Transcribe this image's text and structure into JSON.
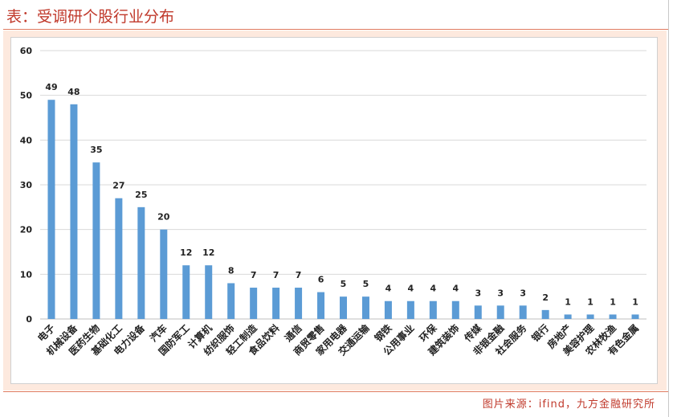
{
  "header": {
    "title": "表：受调研个股行业分布"
  },
  "footer": {
    "source": "图片来源：ifind，九方金融研究所"
  },
  "colors": {
    "bar": "#5b9bd5",
    "title": "#c0392b",
    "frame": "#fde9de"
  },
  "chart_data": {
    "type": "bar",
    "categories": [
      "电子",
      "机械设备",
      "医药生物",
      "基础化工",
      "电力设备",
      "汽车",
      "国防军工",
      "计算机",
      "纺织服饰",
      "轻工制造",
      "食品饮料",
      "通信",
      "商贸零售",
      "家用电器",
      "交通运输",
      "钢铁",
      "公用事业",
      "环保",
      "建筑装饰",
      "传媒",
      "非银金融",
      "社会服务",
      "银行",
      "房地产",
      "美容护理",
      "农林牧渔",
      "有色金属"
    ],
    "values": [
      49,
      48,
      35,
      27,
      25,
      20,
      12,
      12,
      8,
      7,
      7,
      7,
      6,
      5,
      5,
      4,
      4,
      4,
      4,
      3,
      3,
      3,
      2,
      1,
      1,
      1,
      1
    ],
    "ylim": [
      0,
      60
    ],
    "yticks": [
      0,
      10,
      20,
      30,
      40,
      50,
      60
    ],
    "grid": true,
    "legend": "none",
    "data_labels": true
  }
}
